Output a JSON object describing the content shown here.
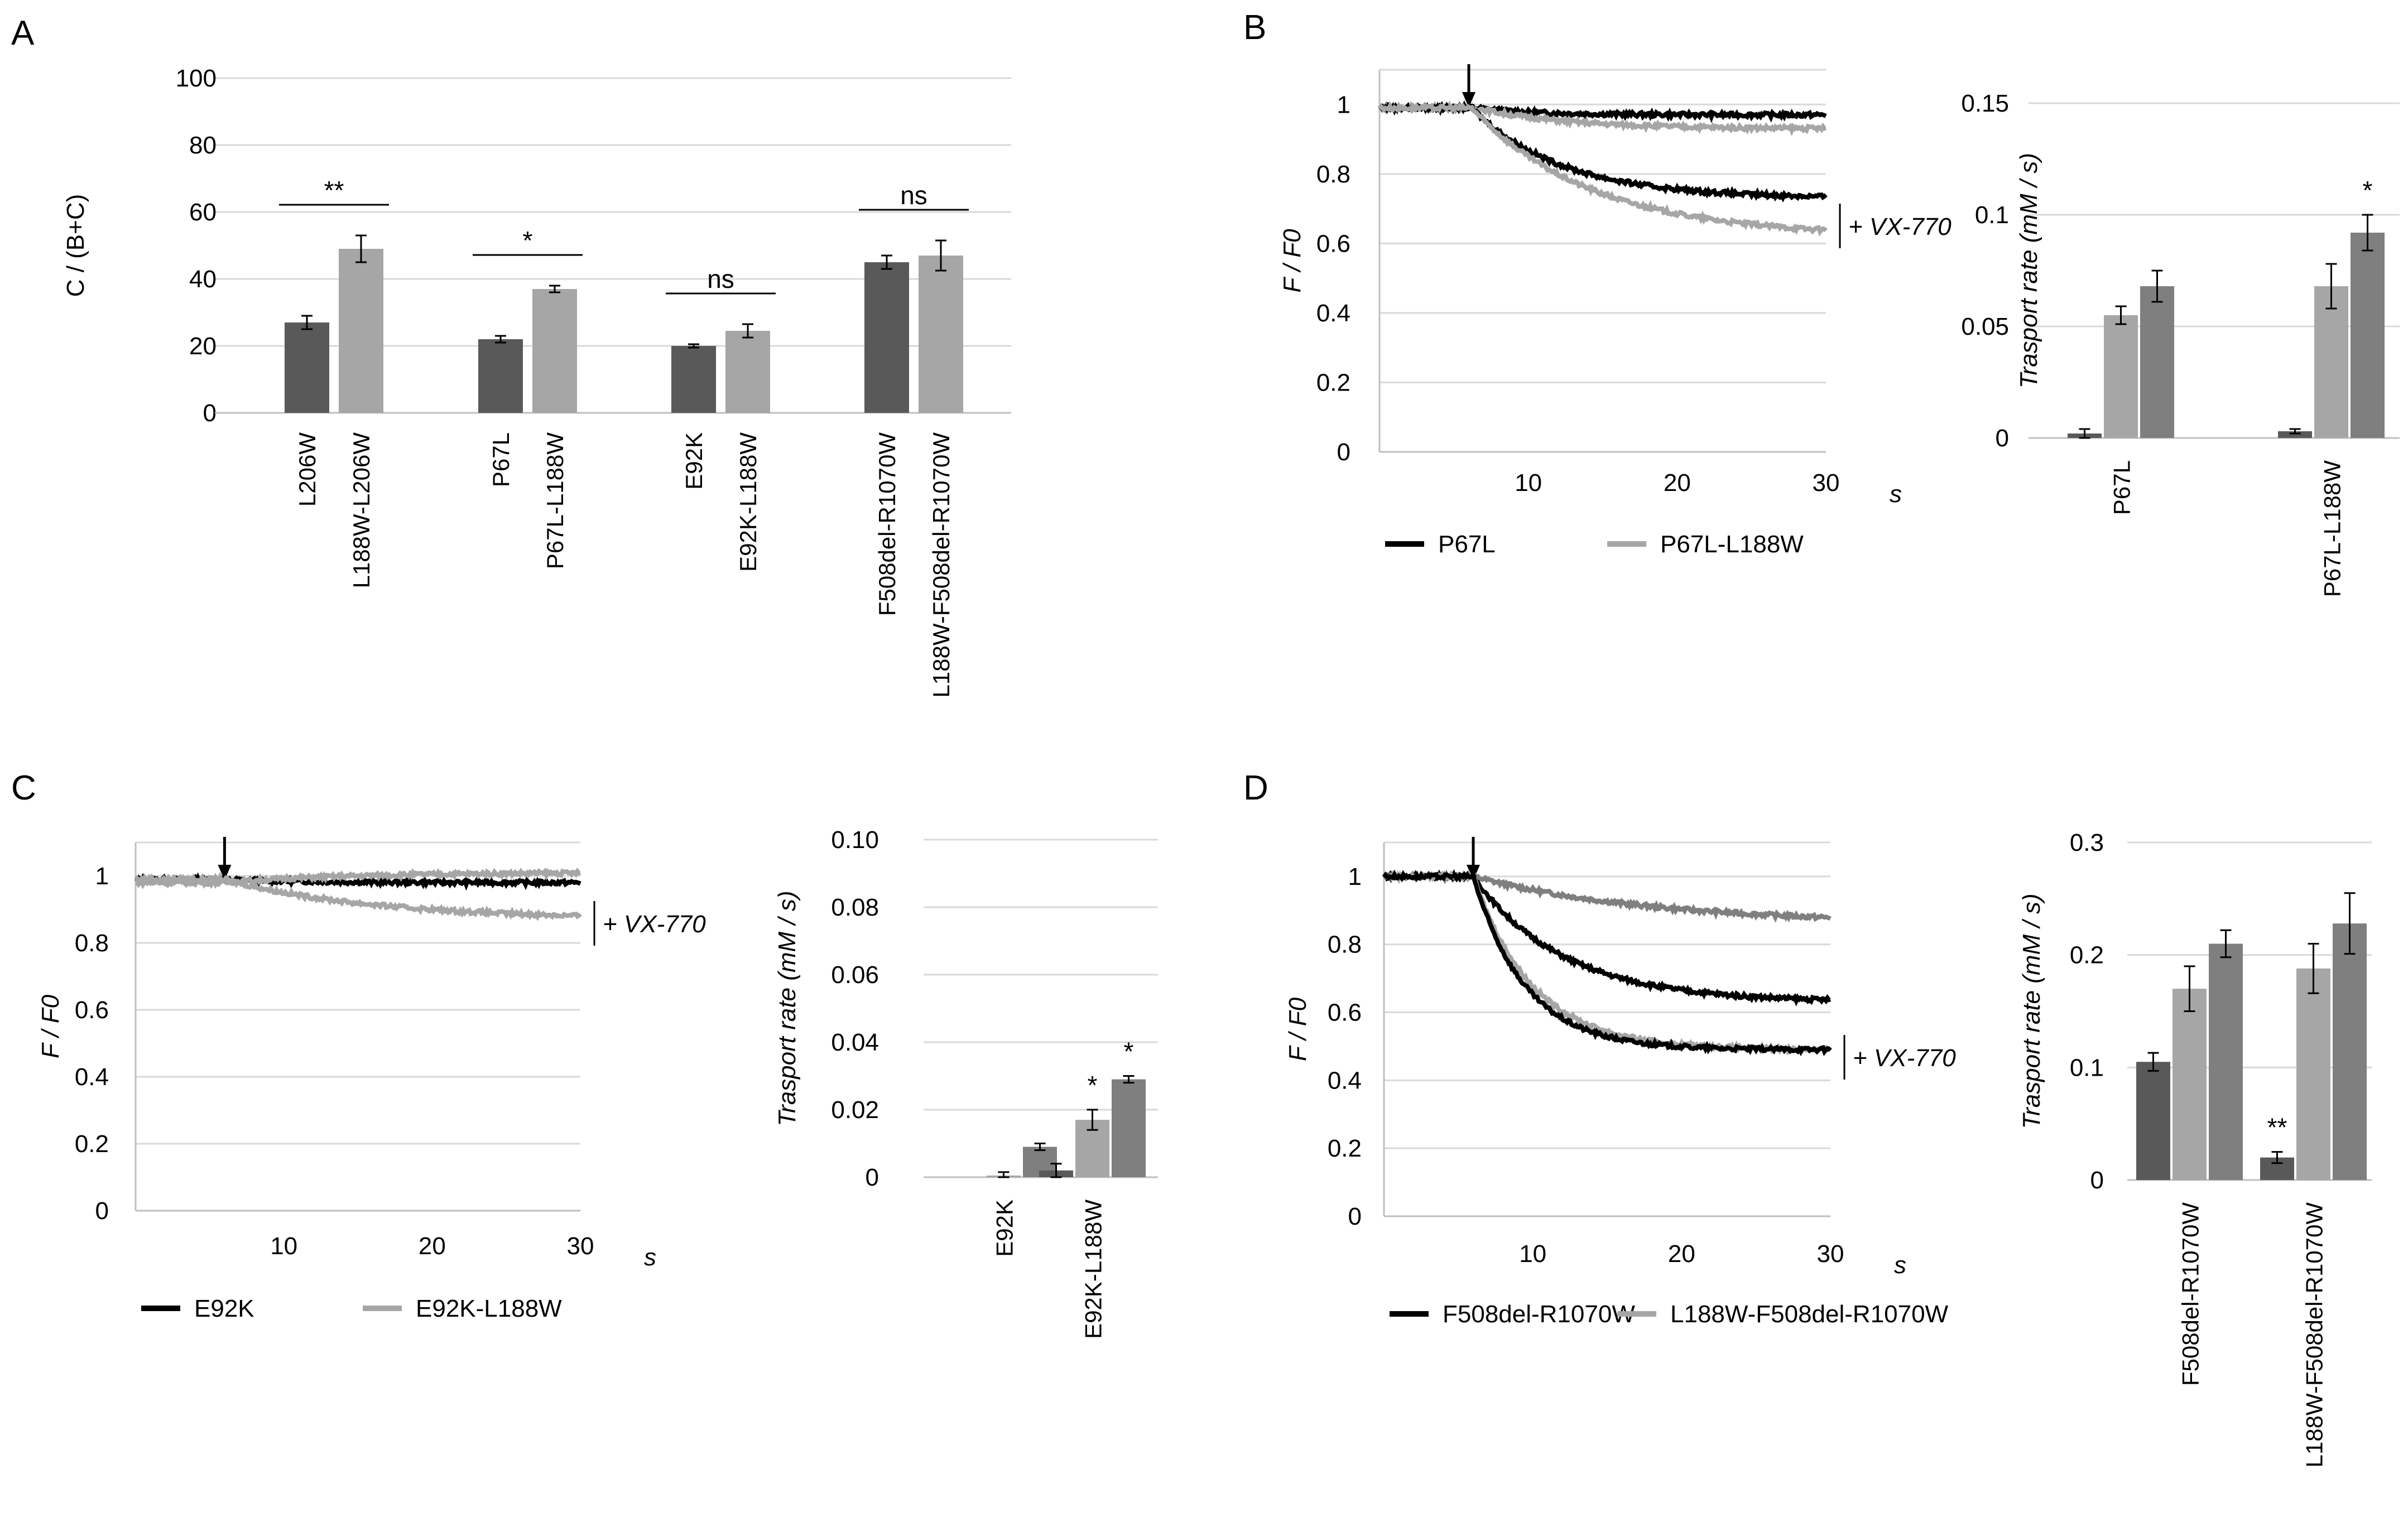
{
  "colors": {
    "dark": "#595959",
    "light": "#a6a6a6",
    "medium": "#7f7f7f",
    "black": "#000000"
  },
  "panels": {
    "A": "A",
    "B": "B",
    "C": "C",
    "D": "D"
  },
  "chart_data": [
    {
      "id": "A",
      "type": "bar",
      "panel": "A",
      "ylabel": "C / (B+C)",
      "ylim": [
        0,
        100
      ],
      "yticks": [
        "0",
        "20",
        "40",
        "60",
        "80",
        "100"
      ],
      "groups": [
        {
          "bars": [
            {
              "label": "L206W",
              "value": 27,
              "err": 2,
              "color": "dark"
            },
            {
              "label": "L188W-L206W",
              "value": 49,
              "err": 4,
              "color": "light"
            }
          ],
          "sig": "**"
        },
        {
          "bars": [
            {
              "label": "P67L",
              "value": 22,
              "err": 1,
              "color": "dark"
            },
            {
              "label": "P67L-L188W",
              "value": 37,
              "err": 1,
              "color": "light"
            }
          ],
          "sig": "*"
        },
        {
          "bars": [
            {
              "label": "E92K",
              "value": 20,
              "err": 0.5,
              "color": "dark"
            },
            {
              "label": "E92K-L188W",
              "value": 24.5,
              "err": 2,
              "color": "light"
            }
          ],
          "sig": "ns"
        },
        {
          "bars": [
            {
              "label": "F508del-R1070W",
              "value": 45,
              "err": 2,
              "color": "dark"
            },
            {
              "label": "L188W-F508del-R1070W",
              "value": 47,
              "err": 4.5,
              "color": "light"
            }
          ],
          "sig": "ns"
        }
      ]
    },
    {
      "id": "B-trace",
      "type": "line",
      "panel": "B",
      "ylabel": "F / F0",
      "ylim": [
        0,
        1.1
      ],
      "yticks": [
        "0",
        "0.2",
        "0.4",
        "0.6",
        "0.8",
        "1"
      ],
      "xlim": [
        0,
        30
      ],
      "xticks": [
        "10",
        "20",
        "30"
      ],
      "xunit": "s",
      "arrow_x": 6,
      "annotation": "+ VX-770",
      "legend": [
        "P67L",
        "P67L-L188W"
      ],
      "series": [
        {
          "name": "P67L",
          "role": "basal",
          "color": "black",
          "start": 0.99,
          "end": 0.97,
          "drop": 6.5,
          "tau": 4
        },
        {
          "name": "P67L-L188W",
          "role": "basal",
          "color": "light",
          "start": 0.99,
          "end": 0.93,
          "drop": 6.5,
          "tau": 6
        },
        {
          "name": "P67L",
          "role": "VX-770",
          "color": "black",
          "start": 0.99,
          "end": 0.73,
          "drop": 6.2,
          "tau": 6
        },
        {
          "name": "P67L-L188W",
          "role": "VX-770",
          "color": "light",
          "start": 0.99,
          "end": 0.62,
          "drop": 6.2,
          "tau": 8
        }
      ]
    },
    {
      "id": "B-bar",
      "type": "bar",
      "panel": "B",
      "ylabel": "Trasport rate (mM / s)",
      "ylim": [
        0,
        0.15
      ],
      "yticks": [
        "0",
        "0.05",
        "0.1",
        "0.15"
      ],
      "groups": [
        {
          "label": "P67L",
          "values": [
            0.002,
            0.055,
            0.068
          ],
          "errs": [
            0.002,
            0.004,
            0.007
          ],
          "sig": [
            "",
            "",
            ""
          ]
        },
        {
          "label": "P67L-L188W",
          "values": [
            0.003,
            0.068,
            0.092
          ],
          "errs": [
            0.001,
            0.01,
            0.008
          ],
          "sig": [
            "",
            "",
            "*"
          ]
        }
      ]
    },
    {
      "id": "C-trace",
      "type": "line",
      "panel": "C",
      "ylabel": "F / F0",
      "ylim": [
        0,
        1.1
      ],
      "yticks": [
        "0",
        "0.2",
        "0.4",
        "0.6",
        "0.8",
        "1"
      ],
      "xlim": [
        0,
        30
      ],
      "xticks": [
        "10",
        "20",
        "30"
      ],
      "xunit": "s",
      "arrow_x": 6,
      "annotation": "+ VX-770",
      "legend": [
        "E92K",
        "E92K-L188W"
      ],
      "series": [
        {
          "name": "E92K",
          "role": "basal",
          "color": "black",
          "start": 0.99,
          "end": 0.98,
          "drop": 6,
          "tau": 5
        },
        {
          "name": "E92K-L188W",
          "role": "basal",
          "color": "light",
          "start": 0.98,
          "end": 1.01,
          "drop": 6,
          "tau": 8
        },
        {
          "name": "E92K-L188W",
          "role": "VX-770",
          "color": "light",
          "start": 0.99,
          "end": 0.87,
          "drop": 6,
          "tau": 10
        }
      ]
    },
    {
      "id": "C-bar",
      "type": "bar",
      "panel": "C",
      "ylabel": "Trasport rate (mM / s)",
      "ylim": [
        0,
        0.1
      ],
      "yticks": [
        "0",
        "0.02",
        "0.04",
        "0.06",
        "0.08",
        "0.10"
      ],
      "groups": [
        {
          "label": "E92K",
          "values": [
            0,
            0.0005,
            0.009
          ],
          "errs": [
            0,
            0.001,
            0.001
          ],
          "sig": [
            "",
            "",
            ""
          ]
        },
        {
          "label": "E92K-L188W",
          "values": [
            0.002,
            0.017,
            0.029
          ],
          "errs": [
            0.002,
            0.003,
            0.001
          ],
          "sig": [
            "",
            "*",
            "*"
          ]
        }
      ]
    },
    {
      "id": "D-trace",
      "type": "line",
      "panel": "D",
      "ylabel": "F / F0",
      "ylim": [
        0,
        1.1
      ],
      "yticks": [
        "0",
        "0.2",
        "0.4",
        "0.6",
        "0.8",
        "1"
      ],
      "xlim": [
        0,
        30
      ],
      "xticks": [
        "10",
        "20",
        "30"
      ],
      "xunit": "s",
      "arrow_x": 6,
      "annotation": "+ VX-770",
      "legend": [
        "F508del-R1070W",
        "L188W-F508del-R1070W"
      ],
      "series": [
        {
          "name": "L188W-F508del-R1070W",
          "role": "basal",
          "color": "medium",
          "start": 1.0,
          "end": 0.86,
          "drop": 6,
          "tau": 12
        },
        {
          "name": "F508del-R1070W",
          "role": "VX-770",
          "color": "black",
          "start": 1.0,
          "end": 0.63,
          "drop": 6,
          "tau": 6
        },
        {
          "name": "L188W-F508del-R1070W",
          "role": "VX-770",
          "color": "light",
          "start": 1.0,
          "end": 0.49,
          "drop": 6,
          "tau": 4
        },
        {
          "name": "F508del-R1070W",
          "role": "VX-770b",
          "color": "black",
          "start": 1.0,
          "end": 0.49,
          "drop": 6,
          "tau": 3.5
        }
      ]
    },
    {
      "id": "D-bar",
      "type": "bar",
      "panel": "D",
      "ylabel": "Trasport rate (mM / s)",
      "ylim": [
        0,
        0.3
      ],
      "yticks": [
        "0",
        "0.1",
        "0.2",
        "0.3"
      ],
      "groups": [
        {
          "label": "F508del-R1070W",
          "values": [
            0.105,
            0.17,
            0.21
          ],
          "errs": [
            0.008,
            0.02,
            0.012
          ],
          "sig": [
            "",
            "",
            ""
          ]
        },
        {
          "label": "L188W-F508del-R1070W",
          "values": [
            0.02,
            0.188,
            0.228
          ],
          "errs": [
            0.005,
            0.022,
            0.027
          ],
          "sig": [
            "**",
            "",
            ""
          ]
        }
      ]
    }
  ]
}
